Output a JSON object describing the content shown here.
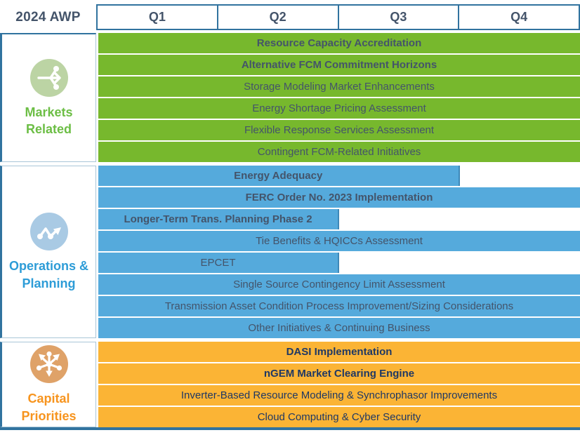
{
  "header": {
    "title": "2024 AWP",
    "quarters": [
      "Q1",
      "Q2",
      "Q3",
      "Q4"
    ]
  },
  "colors": {
    "table_border": "#31739F",
    "light_border": "#A9C6D8",
    "slate_text": "#44546A",
    "navy_text": "#1F3864",
    "markets_bar": "#77B82D",
    "operations_bar": "#55AADC",
    "capital_bar": "#FBB435",
    "markets_label": "#6CBE45",
    "operations_label": "#2D9CD7",
    "capital_label": "#F7941E",
    "markets_icon_bg": "#BCD4A4",
    "operations_icon_bg": "#A9CAE4",
    "capital_icon_bg": "#DFA268",
    "partial_bar_edge": "#3E88B8"
  },
  "sections": [
    {
      "key": "markets",
      "label": "Markets Related",
      "icon": "share-network-icon",
      "rows": [
        {
          "label": "Resource Capacity Accreditation",
          "bold": true,
          "start": "Q1",
          "end": "Q4",
          "width_pct": 100
        },
        {
          "label": "Alternative FCM Commitment Horizons",
          "bold": true,
          "start": "Q1",
          "end": "Q4",
          "width_pct": 100
        },
        {
          "label": "Storage Modeling Market Enhancements",
          "bold": false,
          "start": "Q1",
          "end": "Q4",
          "width_pct": 100
        },
        {
          "label": "Energy Shortage Pricing Assessment",
          "bold": false,
          "start": "Q1",
          "end": "Q4",
          "width_pct": 100
        },
        {
          "label": "Flexible Response Services Assessment",
          "bold": false,
          "start": "Q1",
          "end": "Q4",
          "width_pct": 100
        },
        {
          "label": "Contingent FCM-Related Initiatives",
          "bold": false,
          "start": "Q1",
          "end": "Q4",
          "width_pct": 100
        }
      ]
    },
    {
      "key": "operations",
      "label": "Operations & Planning",
      "icon": "trend-line-icon",
      "rows": [
        {
          "label": "Energy Adequacy",
          "bold": true,
          "start": "Q1",
          "end": "Q3",
          "width_pct": 75
        },
        {
          "label": "FERC Order No. 2023 Implementation",
          "bold": true,
          "start": "Q1",
          "end": "Q4",
          "width_pct": 100
        },
        {
          "label": "Longer-Term Trans. Planning Phase 2",
          "bold": true,
          "start": "Q1",
          "end": "Q2",
          "width_pct": 50
        },
        {
          "label": "Tie Benefits & HQICCs Assessment",
          "bold": false,
          "start": "Q1",
          "end": "Q4",
          "width_pct": 100
        },
        {
          "label": "EPCET",
          "bold": false,
          "start": "Q1",
          "end": "Q2",
          "width_pct": 50
        },
        {
          "label": "Single Source Contingency Limit Assessment",
          "bold": false,
          "start": "Q1",
          "end": "Q4",
          "width_pct": 100
        },
        {
          "label": "Transmission Asset Condition Process Improvement/Sizing Considerations",
          "bold": false,
          "start": "Q1",
          "end": "Q4",
          "width_pct": 100
        },
        {
          "label": "Other Initiatives & Continuing Business",
          "bold": false,
          "start": "Q1",
          "end": "Q4",
          "width_pct": 100
        }
      ]
    },
    {
      "key": "capital",
      "label": "Capital Priorities",
      "icon": "hub-arrows-icon",
      "rows": [
        {
          "label": "DASI Implementation",
          "bold": true,
          "start": "Q1",
          "end": "Q4",
          "width_pct": 100
        },
        {
          "label": "nGEM Market Clearing Engine",
          "bold": true,
          "start": "Q1",
          "end": "Q4",
          "width_pct": 100
        },
        {
          "label": "Inverter-Based Resource Modeling & Synchrophasor Improvements",
          "bold": false,
          "start": "Q1",
          "end": "Q4",
          "width_pct": 100
        },
        {
          "label": "Cloud Computing & Cyber Security",
          "bold": false,
          "start": "Q1",
          "end": "Q4",
          "width_pct": 100
        }
      ]
    }
  ],
  "chart_data": {
    "type": "bar",
    "subtype": "gantt-roadmap",
    "title": "2024 AWP",
    "x_categories": [
      "Q1",
      "Q2",
      "Q3",
      "Q4"
    ],
    "legend_position": "left-swimlane-labels",
    "grid": false,
    "groups": [
      "Markets Related",
      "Operations & Planning",
      "Capital Priorities"
    ],
    "tasks": [
      {
        "group": "Markets Related",
        "label": "Resource Capacity Accreditation",
        "start": "Q1",
        "end": "Q4"
      },
      {
        "group": "Markets Related",
        "label": "Alternative FCM Commitment Horizons",
        "start": "Q1",
        "end": "Q4"
      },
      {
        "group": "Markets Related",
        "label": "Storage Modeling Market Enhancements",
        "start": "Q1",
        "end": "Q4"
      },
      {
        "group": "Markets Related",
        "label": "Energy Shortage Pricing Assessment",
        "start": "Q1",
        "end": "Q4"
      },
      {
        "group": "Markets Related",
        "label": "Flexible Response Services Assessment",
        "start": "Q1",
        "end": "Q4"
      },
      {
        "group": "Markets Related",
        "label": "Contingent FCM-Related Initiatives",
        "start": "Q1",
        "end": "Q4"
      },
      {
        "group": "Operations & Planning",
        "label": "Energy Adequacy",
        "start": "Q1",
        "end": "Q3"
      },
      {
        "group": "Operations & Planning",
        "label": "FERC Order No. 2023 Implementation",
        "start": "Q1",
        "end": "Q4"
      },
      {
        "group": "Operations & Planning",
        "label": "Longer-Term Trans. Planning Phase 2",
        "start": "Q1",
        "end": "Q2"
      },
      {
        "group": "Operations & Planning",
        "label": "Tie Benefits & HQICCs Assessment",
        "start": "Q1",
        "end": "Q4"
      },
      {
        "group": "Operations & Planning",
        "label": "EPCET",
        "start": "Q1",
        "end": "Q2"
      },
      {
        "group": "Operations & Planning",
        "label": "Single Source Contingency Limit Assessment",
        "start": "Q1",
        "end": "Q4"
      },
      {
        "group": "Operations & Planning",
        "label": "Transmission Asset Condition Process Improvement/Sizing Considerations",
        "start": "Q1",
        "end": "Q4"
      },
      {
        "group": "Operations & Planning",
        "label": "Other Initiatives & Continuing Business",
        "start": "Q1",
        "end": "Q4"
      },
      {
        "group": "Capital Priorities",
        "label": "DASI Implementation",
        "start": "Q1",
        "end": "Q4"
      },
      {
        "group": "Capital Priorities",
        "label": "nGEM Market Clearing Engine",
        "start": "Q1",
        "end": "Q4"
      },
      {
        "group": "Capital Priorities",
        "label": "Inverter-Based Resource Modeling & Synchrophasor Improvements",
        "start": "Q1",
        "end": "Q4"
      },
      {
        "group": "Capital Priorities",
        "label": "Cloud Computing & Cyber Security",
        "start": "Q1",
        "end": "Q4"
      }
    ]
  }
}
